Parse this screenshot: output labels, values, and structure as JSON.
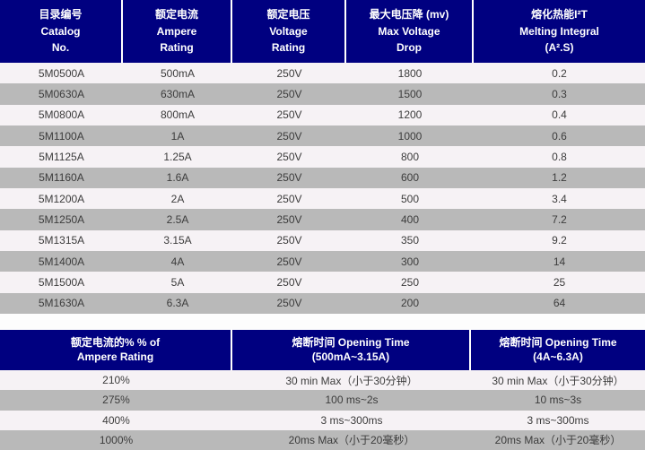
{
  "colors": {
    "header_bg": "#000080",
    "header_text": "#ffffff",
    "row_light": "#f6f2f5",
    "row_gray": "#b9b9b9",
    "body_text": "#3c3c3c",
    "gap_bg": "#fdfdfd"
  },
  "spec_table": {
    "columns": [
      {
        "lines": [
          "目录编号",
          "Catalog",
          "No."
        ]
      },
      {
        "lines": [
          "额定电流",
          "Ampere",
          "Rating"
        ]
      },
      {
        "lines": [
          "额定电压",
          "Voltage",
          "Rating"
        ]
      },
      {
        "lines": [
          "最大电压降 (mv)",
          "Max Voltage",
          "Drop"
        ]
      },
      {
        "lines": [
          "熔化热能I²T",
          "Melting Integral",
          "(A².S)"
        ]
      }
    ],
    "rows": [
      [
        "5M0500A",
        "500mA",
        "250V",
        "1800",
        "0.2"
      ],
      [
        "5M0630A",
        "630mA",
        "250V",
        "1500",
        "0.3"
      ],
      [
        "5M0800A",
        "800mA",
        "250V",
        "1200",
        "0.4"
      ],
      [
        "5M1100A",
        "1A",
        "250V",
        "1000",
        "0.6"
      ],
      [
        "5M1125A",
        "1.25A",
        "250V",
        "800",
        "0.8"
      ],
      [
        "5M1160A",
        "1.6A",
        "250V",
        "600",
        "1.2"
      ],
      [
        "5M1200A",
        "2A",
        "250V",
        "500",
        "3.4"
      ],
      [
        "5M1250A",
        "2.5A",
        "250V",
        "400",
        "7.2"
      ],
      [
        "5M1315A",
        "3.15A",
        "250V",
        "350",
        "9.2"
      ],
      [
        "5M1400A",
        "4A",
        "250V",
        "300",
        "14"
      ],
      [
        "5M1500A",
        "5A",
        "250V",
        "250",
        "25"
      ],
      [
        "5M1630A",
        "6.3A",
        "250V",
        "200",
        "64"
      ]
    ]
  },
  "opening_time_table": {
    "columns": [
      {
        "lines": [
          "额定电流的% % of",
          "Ampere Rating"
        ]
      },
      {
        "lines": [
          "熔断时间 Opening Time",
          "(500mA~3.15A)"
        ]
      },
      {
        "lines": [
          "熔断时间 Opening Time",
          "(4A~6.3A)"
        ]
      }
    ],
    "rows": [
      [
        "210%",
        "30 min Max（小于30分钟）",
        "30 min Max（小于30分钟）"
      ],
      [
        "275%",
        "100 ms~2s",
        "10 ms~3s"
      ],
      [
        "400%",
        "3 ms~300ms",
        "3 ms~300ms"
      ],
      [
        "1000%",
        "20ms Max（小于20毫秒）",
        "20ms Max（小于20毫秒）"
      ]
    ]
  }
}
